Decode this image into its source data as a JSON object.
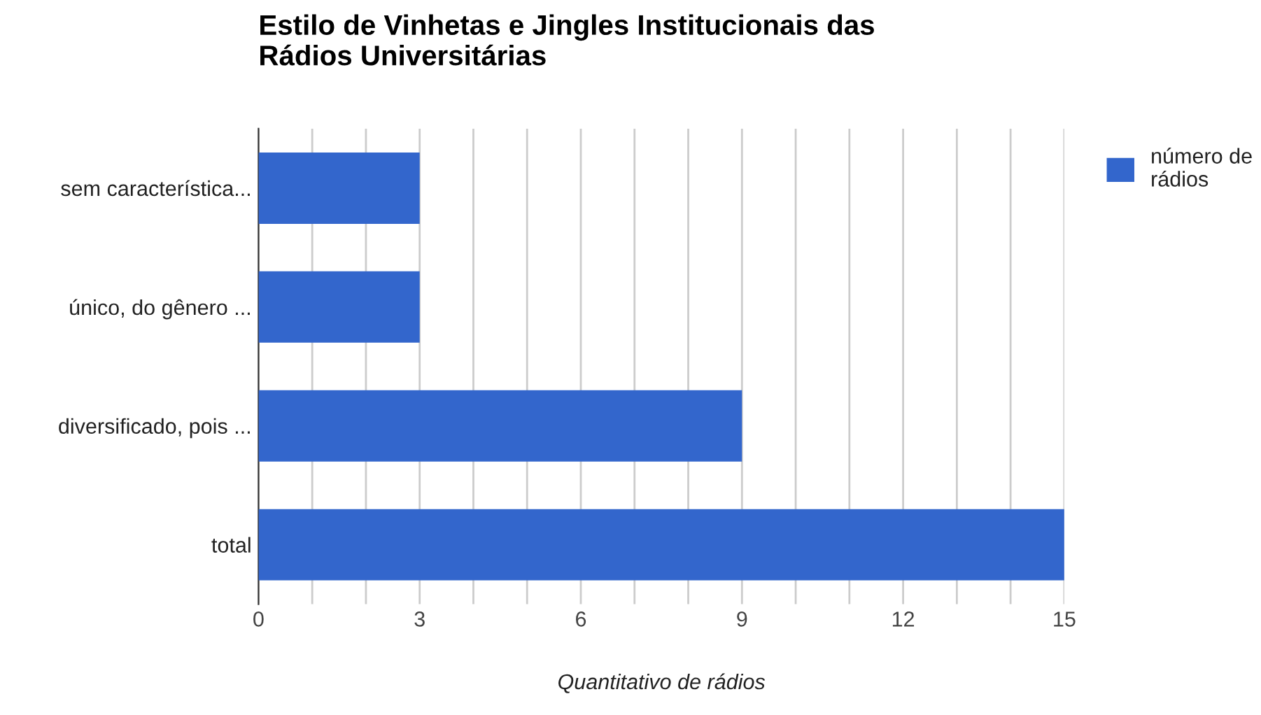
{
  "chart_data": {
    "type": "bar",
    "orientation": "horizontal",
    "title": "Estilo de Vinhetas e Jingles Institucionais das\nRádios Universitárias",
    "xlabel": "Quantitativo de rádios",
    "categories": [
      "sem característica...",
      "único, do gênero ...",
      "diversificado, pois ...",
      "total"
    ],
    "series": [
      {
        "name": "número de\nrádios",
        "color": "#3366cc",
        "values": [
          3,
          3,
          9,
          15
        ]
      }
    ],
    "xlim": [
      0,
      15
    ],
    "xticks": [
      0,
      {
        "value": 1,
        "label": null
      },
      {
        "value": 2,
        "label": null
      },
      3,
      {
        "value": 4,
        "label": null
      },
      {
        "value": 5,
        "label": null
      },
      6,
      {
        "value": 7,
        "label": null
      },
      {
        "value": 8,
        "label": null
      },
      9,
      {
        "value": 10,
        "label": null
      },
      {
        "value": 11,
        "label": null
      },
      12,
      {
        "value": 13,
        "label": null
      },
      {
        "value": 14,
        "label": null
      },
      15
    ],
    "grid": "x",
    "legend": "top right"
  }
}
